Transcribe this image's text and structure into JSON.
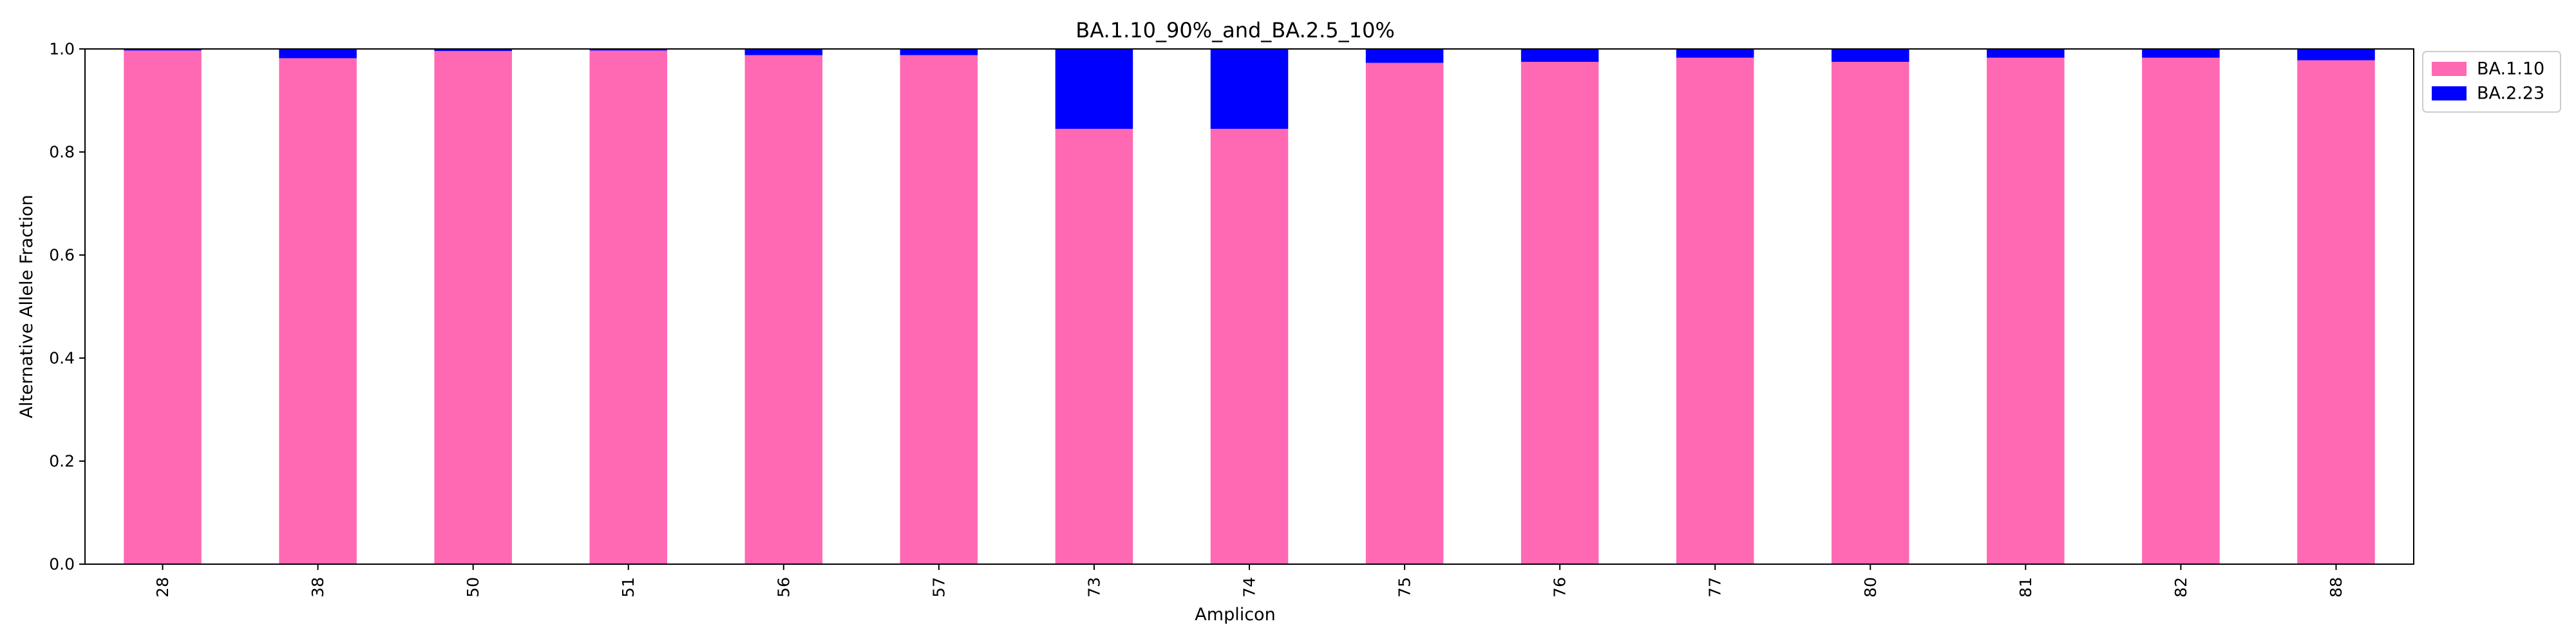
{
  "chart_data": {
    "type": "bar",
    "stacked": true,
    "title": "BA.1.10_90%_and_BA.2.5_10%",
    "xlabel": "Amplicon",
    "ylabel": "Alternative Allele Fraction",
    "ylim": [
      0,
      1
    ],
    "yticks": [
      "0.0",
      "0.2",
      "0.4",
      "0.6",
      "0.8",
      "1.0"
    ],
    "categories": [
      "28",
      "38",
      "50",
      "51",
      "56",
      "57",
      "73",
      "74",
      "75",
      "76",
      "77",
      "80",
      "81",
      "82",
      "88"
    ],
    "series": [
      {
        "name": "BA.1.10",
        "color": "#ff69b4",
        "values": [
          0.997,
          0.982,
          0.996,
          0.997,
          0.988,
          0.988,
          0.845,
          0.845,
          0.973,
          0.975,
          0.983,
          0.975,
          0.983,
          0.983,
          0.978
        ]
      },
      {
        "name": "BA.2.23",
        "color": "#0000ff",
        "values": [
          0.003,
          0.018,
          0.004,
          0.003,
          0.012,
          0.012,
          0.155,
          0.155,
          0.027,
          0.025,
          0.017,
          0.025,
          0.017,
          0.017,
          0.022
        ]
      }
    ],
    "grid": false,
    "legend_position": "outside-top-right"
  }
}
